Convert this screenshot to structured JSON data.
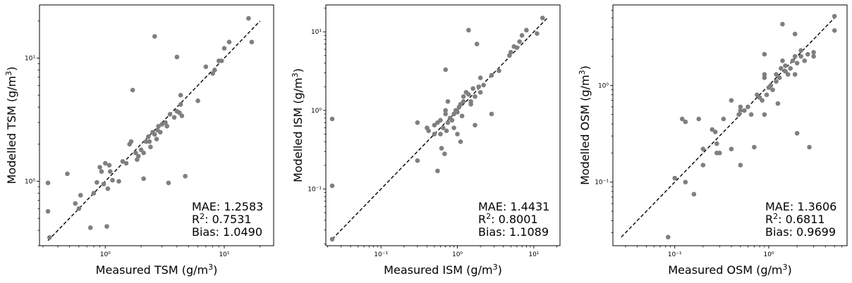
{
  "chart_data": [
    {
      "type": "scatter",
      "xscale": "log",
      "yscale": "log",
      "xlabel": "Measured TSM",
      "ylabel": "Modelled TSM",
      "unit": "(g/m³)",
      "xlim": [
        0.28,
        26
      ],
      "ylim": [
        0.3,
        27
      ],
      "xticks": [
        {
          "value": 1,
          "label": "10⁰"
        },
        {
          "value": 10,
          "label": "10¹"
        }
      ],
      "yticks": [
        {
          "value": 1,
          "label": "10⁰"
        },
        {
          "value": 10,
          "label": "10¹"
        }
      ],
      "reference_line": [
        [
          0.33,
          0.33
        ],
        [
          20,
          20
        ]
      ],
      "stats": {
        "mae": "MAE: 1.2583",
        "r2_label": "R",
        "r2_value": ": 0.7531",
        "bias": "Bias: 1.0490"
      },
      "points": [
        [
          0.33,
          0.97
        ],
        [
          0.33,
          0.57
        ],
        [
          0.34,
          0.35
        ],
        [
          0.48,
          1.15
        ],
        [
          0.56,
          0.66
        ],
        [
          0.6,
          0.6
        ],
        [
          0.62,
          0.77
        ],
        [
          0.75,
          0.42
        ],
        [
          0.8,
          0.8
        ],
        [
          0.85,
          0.98
        ],
        [
          0.9,
          1.3
        ],
        [
          0.93,
          1.2
        ],
        [
          0.97,
          0.95
        ],
        [
          1.0,
          1.4
        ],
        [
          1.03,
          0.43
        ],
        [
          1.05,
          0.87
        ],
        [
          1.08,
          1.35
        ],
        [
          1.1,
          1.2
        ],
        [
          1.15,
          1.02
        ],
        [
          1.3,
          1.0
        ],
        [
          1.4,
          1.45
        ],
        [
          1.5,
          1.4
        ],
        [
          1.6,
          2.0
        ],
        [
          1.65,
          2.1
        ],
        [
          1.7,
          5.5
        ],
        [
          1.8,
          1.7
        ],
        [
          1.85,
          1.5
        ],
        [
          1.9,
          1.6
        ],
        [
          2.0,
          1.8
        ],
        [
          2.1,
          1.7
        ],
        [
          2.1,
          1.05
        ],
        [
          2.2,
          2.1
        ],
        [
          2.3,
          2.3
        ],
        [
          2.35,
          2.1
        ],
        [
          2.4,
          1.9
        ],
        [
          2.5,
          2.5
        ],
        [
          2.6,
          2.4
        ],
        [
          2.6,
          15
        ],
        [
          2.7,
          2.2
        ],
        [
          2.75,
          2.6
        ],
        [
          2.8,
          2.8
        ],
        [
          2.9,
          2.5
        ],
        [
          3.0,
          2.9
        ],
        [
          3.2,
          3.0
        ],
        [
          3.3,
          2.8
        ],
        [
          3.4,
          0.97
        ],
        [
          3.5,
          3.5
        ],
        [
          3.8,
          3.3
        ],
        [
          4.0,
          3.7
        ],
        [
          4.0,
          10.2
        ],
        [
          4.2,
          3.6
        ],
        [
          4.3,
          4.2
        ],
        [
          4.3,
          5.0
        ],
        [
          4.4,
          3.4
        ],
        [
          4.7,
          1.1
        ],
        [
          6.0,
          4.5
        ],
        [
          7.0,
          8.5
        ],
        [
          8.0,
          7.5
        ],
        [
          8.3,
          8.0
        ],
        [
          9.0,
          9.5
        ],
        [
          9.5,
          9.5
        ],
        [
          10,
          12
        ],
        [
          11,
          13.5
        ],
        [
          16,
          21
        ],
        [
          17,
          13.5
        ]
      ]
    },
    {
      "type": "scatter",
      "xscale": "log",
      "yscale": "log",
      "xlabel": "Measured ISM",
      "ylabel": "Modelled ISM",
      "unit": "(g/m³)",
      "xlim": [
        0.019,
        22
      ],
      "ylim": [
        0.019,
        22
      ],
      "xticks": [
        {
          "value": 0.1,
          "label": "10⁻¹"
        },
        {
          "value": 1,
          "label": "10⁰"
        },
        {
          "value": 10,
          "label": "10¹"
        }
      ],
      "yticks": [
        {
          "value": 0.1,
          "label": "10⁻¹"
        },
        {
          "value": 1,
          "label": "10⁰"
        },
        {
          "value": 10,
          "label": "10¹"
        }
      ],
      "reference_line": [
        [
          0.023,
          0.023
        ],
        [
          15,
          15
        ]
      ],
      "stats": {
        "mae": "MAE: 1.4431",
        "r2_label": "R",
        "r2_value": ": 0.8001",
        "bias": "Bias: 1.1089"
      },
      "points": [
        [
          0.023,
          0.78
        ],
        [
          0.023,
          0.11
        ],
        [
          0.023,
          0.023
        ],
        [
          0.3,
          0.7
        ],
        [
          0.3,
          0.23
        ],
        [
          0.4,
          0.6
        ],
        [
          0.42,
          0.55
        ],
        [
          0.5,
          0.5
        ],
        [
          0.5,
          0.65
        ],
        [
          0.55,
          0.17
        ],
        [
          0.55,
          0.7
        ],
        [
          0.6,
          0.75
        ],
        [
          0.6,
          0.5
        ],
        [
          0.62,
          0.33
        ],
        [
          0.65,
          0.6
        ],
        [
          0.68,
          0.28
        ],
        [
          0.7,
          3.3
        ],
        [
          0.7,
          0.9
        ],
        [
          0.7,
          1.0
        ],
        [
          0.72,
          0.55
        ],
        [
          0.75,
          0.7
        ],
        [
          0.75,
          1.3
        ],
        [
          0.8,
          0.8
        ],
        [
          0.85,
          0.75
        ],
        [
          0.9,
          0.9
        ],
        [
          0.9,
          0.6
        ],
        [
          0.95,
          1.0
        ],
        [
          1.0,
          0.5
        ],
        [
          1.0,
          0.95
        ],
        [
          1.05,
          1.1
        ],
        [
          1.1,
          1.2
        ],
        [
          1.1,
          0.4
        ],
        [
          1.15,
          0.85
        ],
        [
          1.2,
          1.3
        ],
        [
          1.2,
          1.5
        ],
        [
          1.3,
          1.7
        ],
        [
          1.4,
          1.6
        ],
        [
          1.4,
          10.5
        ],
        [
          1.5,
          1.3
        ],
        [
          1.5,
          1.2
        ],
        [
          1.6,
          1.9
        ],
        [
          1.7,
          1.5
        ],
        [
          1.7,
          0.65
        ],
        [
          1.8,
          7.0
        ],
        [
          1.9,
          2.0
        ],
        [
          2.0,
          2.6
        ],
        [
          2.0,
          1.7
        ],
        [
          2.2,
          2.1
        ],
        [
          2.8,
          2.8
        ],
        [
          2.8,
          0.9
        ],
        [
          3.5,
          3.2
        ],
        [
          4.8,
          5.0
        ],
        [
          5.0,
          5.5
        ],
        [
          5.5,
          6.5
        ],
        [
          6.0,
          6.3
        ],
        [
          6.5,
          7.5
        ],
        [
          7.0,
          9.0
        ],
        [
          8.0,
          10.5
        ],
        [
          11,
          9.5
        ],
        [
          13,
          15
        ]
      ]
    },
    {
      "type": "scatter",
      "xscale": "log",
      "yscale": "log",
      "xlabel": "Measured OSM",
      "ylabel": "Modelled OSM",
      "unit": "(g/m³)",
      "xlim": [
        0.022,
        6.8
      ],
      "ylim": [
        0.022,
        6.8
      ],
      "xticks": [
        {
          "value": 0.1,
          "label": "10⁻¹"
        },
        {
          "value": 1,
          "label": "10⁰"
        }
      ],
      "yticks": [
        {
          "value": 0.1,
          "label": "10⁻¹"
        },
        {
          "value": 1,
          "label": "10⁰"
        }
      ],
      "reference_line": [
        [
          0.027,
          0.027
        ],
        [
          5,
          5
        ]
      ],
      "stats": {
        "mae": "MAE: 1.3606",
        "r2_label": "R",
        "r2_value": ": 0.6811",
        "bias": "Bias: 0.9699"
      },
      "points": [
        [
          0.085,
          0.027
        ],
        [
          0.1,
          0.11
        ],
        [
          0.12,
          0.45
        ],
        [
          0.13,
          0.42
        ],
        [
          0.13,
          0.1
        ],
        [
          0.16,
          0.075
        ],
        [
          0.18,
          0.45
        ],
        [
          0.2,
          0.15
        ],
        [
          0.2,
          0.22
        ],
        [
          0.25,
          0.35
        ],
        [
          0.27,
          0.33
        ],
        [
          0.28,
          0.25
        ],
        [
          0.28,
          0.2
        ],
        [
          0.3,
          0.2
        ],
        [
          0.33,
          0.45
        ],
        [
          0.4,
          0.22
        ],
        [
          0.4,
          0.7
        ],
        [
          0.48,
          0.5
        ],
        [
          0.5,
          0.6
        ],
        [
          0.5,
          0.55
        ],
        [
          0.5,
          0.15
        ],
        [
          0.55,
          0.55
        ],
        [
          0.6,
          0.6
        ],
        [
          0.65,
          0.5
        ],
        [
          0.7,
          0.23
        ],
        [
          0.75,
          0.8
        ],
        [
          0.8,
          0.75
        ],
        [
          0.85,
          0.7
        ],
        [
          0.9,
          1.2
        ],
        [
          0.9,
          2.1
        ],
        [
          0.9,
          1.3
        ],
        [
          0.9,
          0.5
        ],
        [
          0.95,
          0.8
        ],
        [
          1.0,
          0.95
        ],
        [
          1.05,
          1.0
        ],
        [
          1.1,
          0.9
        ],
        [
          1.2,
          1.3
        ],
        [
          1.2,
          1.1
        ],
        [
          1.25,
          0.65
        ],
        [
          1.3,
          1.2
        ],
        [
          1.35,
          1.5
        ],
        [
          1.4,
          1.8
        ],
        [
          1.4,
          4.3
        ],
        [
          1.5,
          1.4
        ],
        [
          1.5,
          1.6
        ],
        [
          1.6,
          1.3
        ],
        [
          1.7,
          1.5
        ],
        [
          1.8,
          1.8
        ],
        [
          1.9,
          2.0
        ],
        [
          1.9,
          3.4
        ],
        [
          1.9,
          1.3
        ],
        [
          2.0,
          0.32
        ],
        [
          2.0,
          1.7
        ],
        [
          2.2,
          2.0
        ],
        [
          2.2,
          2.3
        ],
        [
          2.4,
          1.8
        ],
        [
          2.6,
          2.1
        ],
        [
          2.7,
          0.23
        ],
        [
          3.0,
          2.2
        ],
        [
          3.0,
          2.0
        ],
        [
          5.0,
          5.2
        ],
        [
          5.0,
          3.7
        ]
      ]
    }
  ]
}
